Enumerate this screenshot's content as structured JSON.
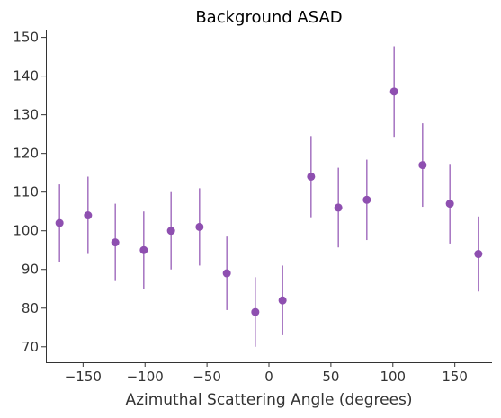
{
  "chart_data": {
    "type": "scatter",
    "title": "Background ASAD",
    "xlabel": "Azimuthal Scattering Angle (degrees)",
    "ylabel": "",
    "xlim": [
      -180,
      180
    ],
    "ylim": [
      66,
      152
    ],
    "xticks": [
      -150,
      -100,
      -50,
      0,
      50,
      100,
      150
    ],
    "xtick_labels": [
      "−150",
      "−100",
      "−50",
      "0",
      "50",
      "100",
      "150"
    ],
    "yticks": [
      70,
      80,
      90,
      100,
      110,
      120,
      130,
      140,
      150
    ],
    "ytick_labels": [
      "70",
      "80",
      "90",
      "100",
      "110",
      "120",
      "130",
      "140",
      "150"
    ],
    "grid": false,
    "color": "#8e4fb0",
    "series": [
      {
        "x": [
          -169,
          -146,
          -124,
          -101,
          -79,
          -56,
          -34,
          -11,
          11,
          34,
          56,
          79,
          101,
          124,
          146,
          169
        ],
        "y": [
          102,
          104,
          97,
          95,
          100,
          101,
          89,
          79,
          82,
          114,
          106,
          108,
          136,
          117,
          107,
          94
        ],
        "yerr": [
          10,
          10,
          10,
          10,
          10,
          10,
          9.5,
          9,
          9,
          10.5,
          10.3,
          10.4,
          11.7,
          10.8,
          10.3,
          9.7
        ]
      }
    ]
  }
}
